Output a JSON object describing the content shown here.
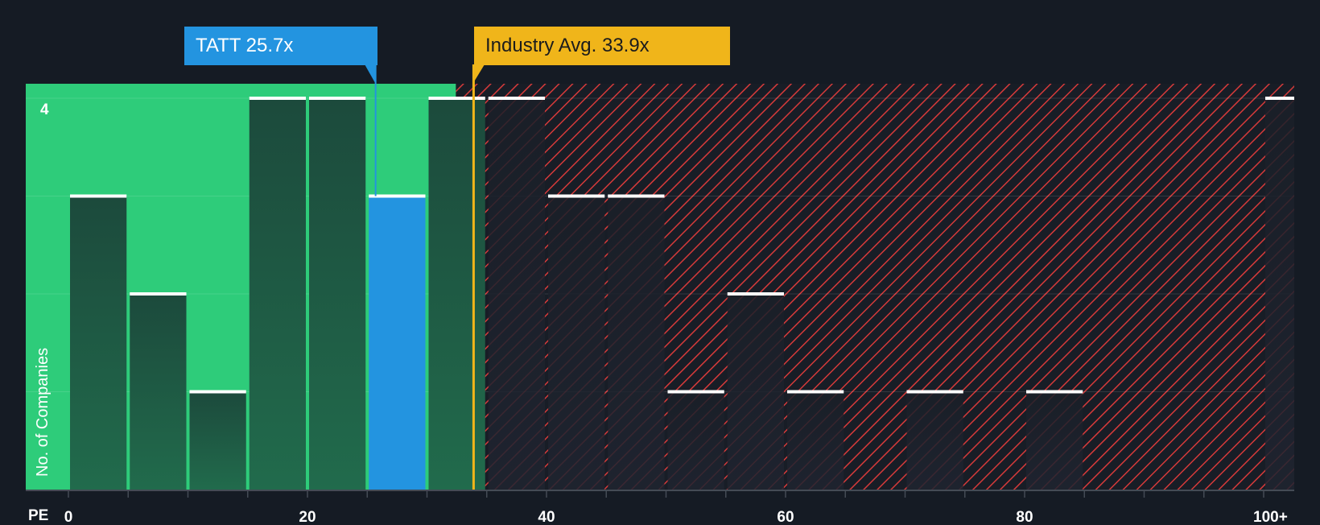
{
  "chart_data": {
    "type": "bar",
    "x_axis_label": "PE",
    "ylabel": "No. of Companies",
    "bin_width": 5,
    "x_ticks": [
      {
        "value": 0,
        "label": "0"
      },
      {
        "value": 20,
        "label": "20"
      },
      {
        "value": 40,
        "label": "40"
      },
      {
        "value": 60,
        "label": "60"
      },
      {
        "value": 80,
        "label": "80"
      },
      {
        "value": 100,
        "label": "100+"
      }
    ],
    "y_max_label": "4",
    "ylim": [
      0,
      4
    ],
    "bins": [
      {
        "start": 0,
        "count": 3
      },
      {
        "start": 5,
        "count": 2
      },
      {
        "start": 10,
        "count": 1
      },
      {
        "start": 15,
        "count": 4
      },
      {
        "start": 20,
        "count": 4
      },
      {
        "start": 25,
        "count": 3,
        "highlight": true
      },
      {
        "start": 30,
        "count": 4
      },
      {
        "start": 35,
        "count": 4
      },
      {
        "start": 40,
        "count": 3
      },
      {
        "start": 45,
        "count": 3
      },
      {
        "start": 50,
        "count": 1
      },
      {
        "start": 55,
        "count": 2
      },
      {
        "start": 60,
        "count": 1
      },
      {
        "start": 70,
        "count": 1
      },
      {
        "start": 80,
        "count": 1
      },
      {
        "start": 100,
        "count": 4
      }
    ],
    "company": {
      "ticker": "TATT",
      "value": 25.7,
      "label": "TATT 25.7x"
    },
    "industry": {
      "value": 33.9,
      "label": "Industry Avg. 33.9x"
    },
    "colors": {
      "background": "#151b24",
      "undervalued_zone": "#2ecc7a",
      "overvalued_stripe": "#d63a3a",
      "bar_dark": "#1c4a3a",
      "bar_highlight": "#2394e0",
      "company_marker": "#2394e0",
      "industry_marker": "#f0b51a"
    }
  }
}
